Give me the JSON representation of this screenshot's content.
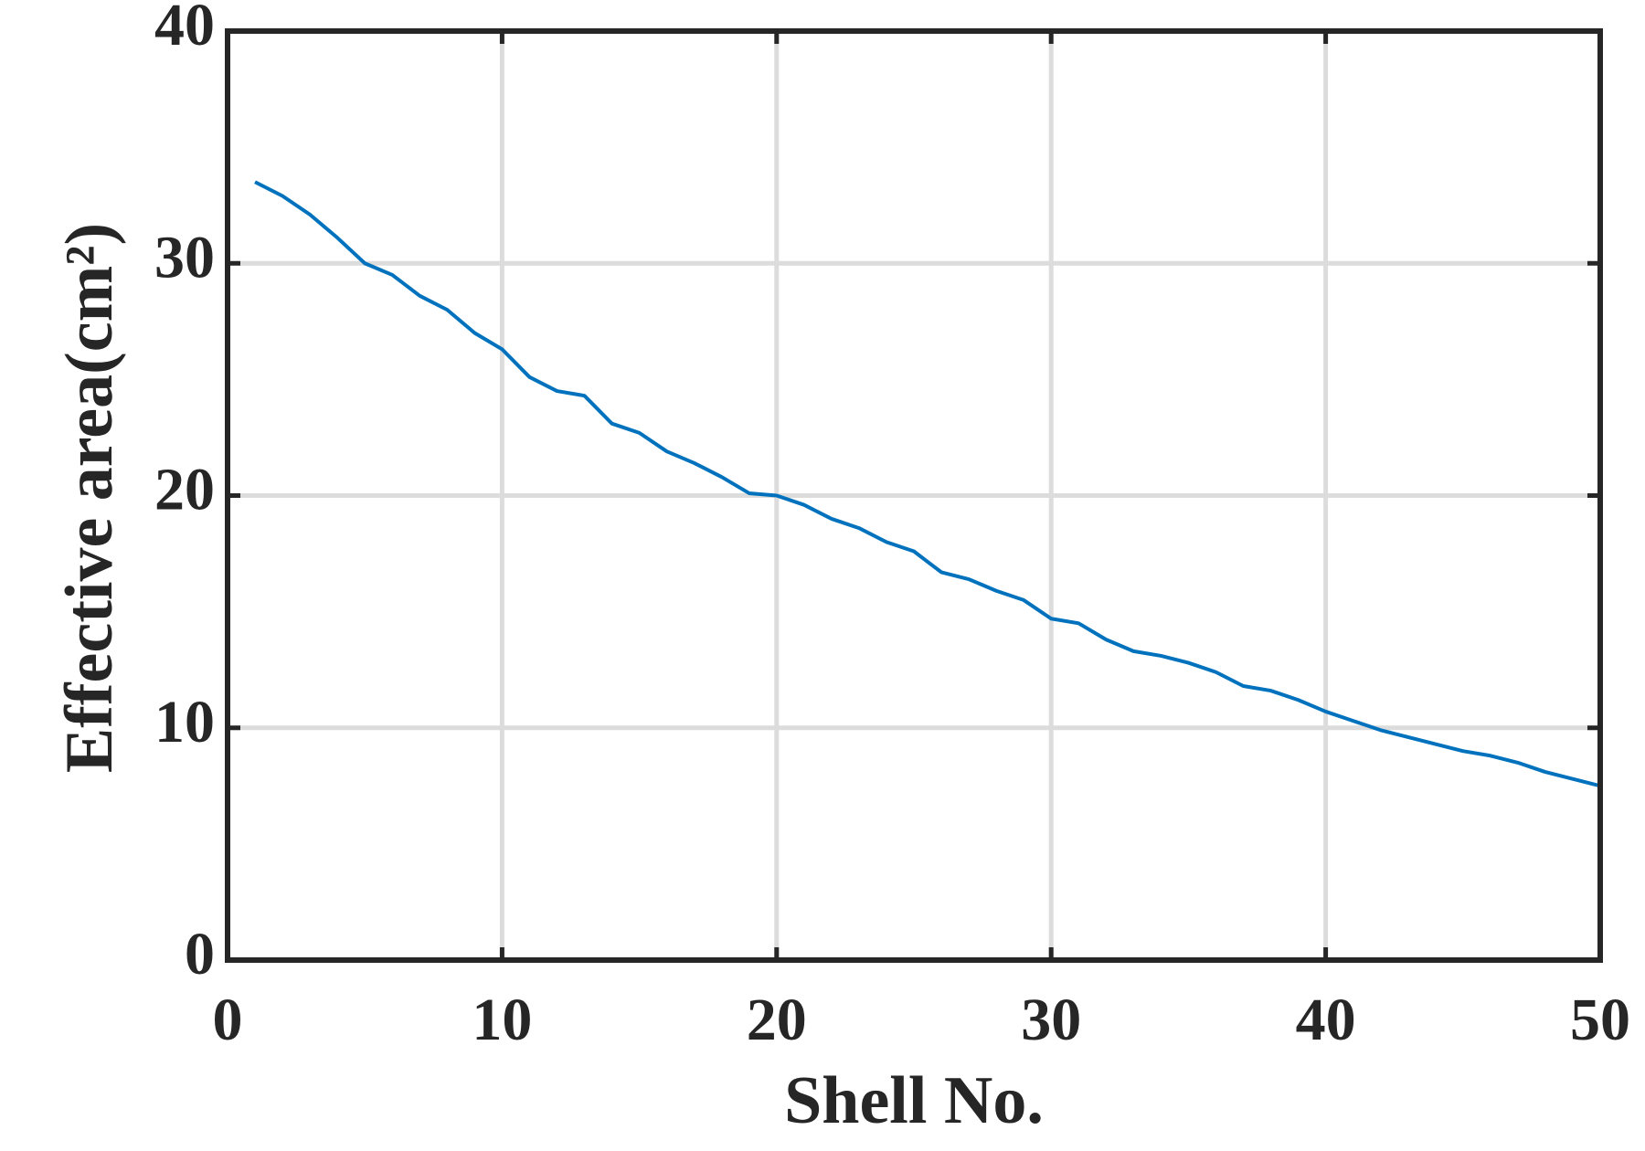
{
  "chart_data": {
    "type": "line",
    "x_label": "Shell No.",
    "y_label": "Effective area(cm²)",
    "x": [
      1,
      2,
      3,
      4,
      5,
      6,
      7,
      8,
      9,
      10,
      11,
      12,
      13,
      14,
      15,
      16,
      17,
      18,
      19,
      20,
      21,
      22,
      23,
      24,
      25,
      26,
      27,
      28,
      29,
      30,
      31,
      32,
      33,
      34,
      35,
      36,
      37,
      38,
      39,
      40,
      41,
      42,
      43,
      44,
      45,
      46,
      47,
      48,
      49,
      50
    ],
    "series": [
      {
        "color": "#0072bd",
        "values": [
          33.5,
          32.9,
          32.1,
          31.1,
          30.0,
          29.5,
          28.6,
          28.0,
          27.0,
          26.3,
          25.1,
          24.5,
          24.3,
          23.1,
          22.7,
          21.9,
          21.4,
          20.8,
          20.1,
          20.0,
          19.6,
          19.0,
          18.6,
          18.0,
          17.6,
          16.7,
          16.4,
          15.9,
          15.5,
          14.7,
          14.5,
          13.8,
          13.3,
          13.1,
          12.8,
          12.4,
          11.8,
          11.6,
          11.2,
          10.7,
          10.3,
          9.9,
          9.6,
          9.3,
          9.0,
          8.8,
          8.5,
          8.1,
          7.8,
          7.5
        ]
      }
    ],
    "xlim": [
      0,
      50
    ],
    "xticks": [
      0,
      10,
      20,
      30,
      40,
      50
    ],
    "ylim": [
      0,
      40
    ],
    "yticks": [
      0,
      10,
      20,
      30,
      40
    ],
    "grid": true
  }
}
